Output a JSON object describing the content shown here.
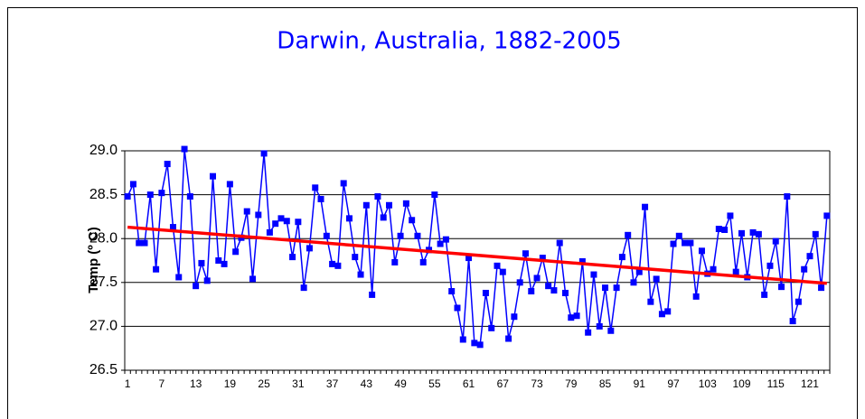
{
  "chart_data": {
    "type": "line",
    "title": "Darwin, Australia, 1882-2005",
    "y_label": "Temp (º C)",
    "categories": [
      "1",
      null,
      null,
      null,
      null,
      null,
      "7",
      null,
      null,
      null,
      null,
      null,
      "13",
      null,
      null,
      null,
      null,
      null,
      "19",
      null,
      null,
      null,
      null,
      null,
      "25",
      null,
      null,
      null,
      null,
      null,
      "31",
      null,
      null,
      null,
      null,
      null,
      "37",
      null,
      null,
      null,
      null,
      null,
      "43",
      null,
      null,
      null,
      null,
      null,
      "49",
      null,
      null,
      null,
      null,
      null,
      "55",
      null,
      null,
      null,
      null,
      null,
      "61",
      null,
      null,
      null,
      null,
      null,
      "67",
      null,
      null,
      null,
      null,
      null,
      "73",
      null,
      null,
      null,
      null,
      null,
      "79",
      null,
      null,
      null,
      null,
      null,
      "85",
      null,
      null,
      null,
      null,
      null,
      "91",
      null,
      null,
      null,
      null,
      null,
      "97",
      null,
      null,
      null,
      null,
      null,
      "103",
      null,
      null,
      null,
      null,
      null,
      "109",
      null,
      null,
      null,
      null,
      null,
      "115",
      null,
      null,
      null,
      null,
      null,
      "121",
      null,
      null,
      null
    ],
    "series": [
      {
        "color": "#0000ff",
        "values": [
          28.48,
          28.62,
          27.95,
          27.95,
          28.5,
          27.65,
          28.52,
          28.85,
          28.13,
          27.56,
          29.02,
          28.48,
          27.46,
          27.72,
          27.52,
          28.71,
          27.75,
          27.71,
          28.62,
          27.85,
          28.01,
          28.31,
          27.54,
          28.27,
          28.97,
          28.07,
          28.17,
          28.23,
          28.2,
          27.79,
          28.19,
          27.44,
          27.89,
          28.58,
          28.45,
          28.03,
          27.71,
          27.69,
          28.63,
          28.23,
          27.79,
          27.59,
          28.38,
          27.36,
          28.48,
          28.24,
          28.38,
          27.73,
          28.03,
          28.4,
          28.21,
          28.03,
          27.73,
          27.87,
          28.5,
          27.94,
          27.99,
          27.4,
          27.21,
          26.85,
          27.78,
          26.81,
          26.79,
          27.38,
          26.98,
          27.69,
          27.62,
          26.86,
          27.11,
          27.5,
          27.83,
          27.4,
          27.55,
          27.78,
          27.46,
          27.41,
          27.95,
          27.38,
          27.1,
          27.12,
          27.74,
          26.93,
          27.59,
          27.0,
          27.44,
          26.95,
          27.44,
          27.79,
          28.04,
          27.5,
          27.62,
          28.36,
          27.28,
          27.54,
          27.14,
          27.17,
          27.94,
          28.03,
          27.95,
          27.95,
          27.34,
          27.86,
          27.6,
          27.65,
          28.11,
          28.1,
          28.26,
          27.62,
          28.06,
          27.56,
          28.07,
          28.05,
          27.36,
          27.69,
          27.97,
          27.45,
          28.48,
          27.06,
          27.28,
          27.65,
          27.8,
          28.05,
          27.44,
          28.26
        ]
      }
    ],
    "trendline": {
      "color": "#ff0000",
      "start": 28.13,
      "end": 27.49
    },
    "ylim": [
      26.5,
      29
    ],
    "yticks": [
      26.5,
      {
        "value": 27,
        "label": "27.0"
      },
      27.5,
      {
        "value": 28,
        "label": "28.0"
      },
      28.5,
      {
        "value": 29,
        "label": "29.0"
      }
    ],
    "grid": true
  }
}
